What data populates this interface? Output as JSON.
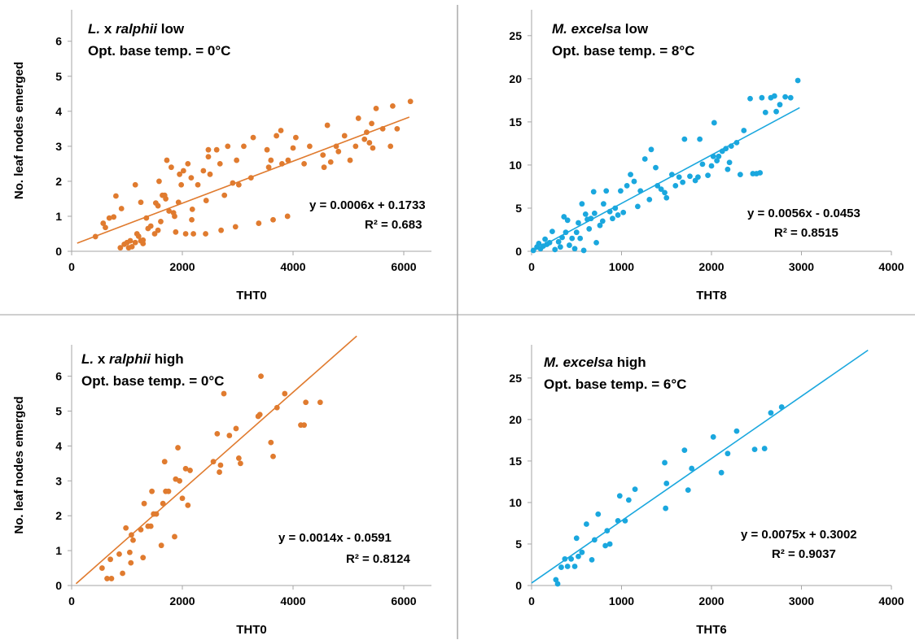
{
  "colors": {
    "orange": "#e07b2f",
    "blue": "#1aa7de",
    "axis": "#a6a6a6",
    "divider": "#7f7f7f"
  },
  "chart_data": [
    {
      "type": "scatter",
      "panel": "top-left",
      "title_parts": [
        {
          "text": "L.",
          "italic": true
        },
        {
          "text": " x ",
          "italic": false
        },
        {
          "text": "ralphii",
          "italic": true
        },
        {
          "text": " low",
          "italic": false
        }
      ],
      "subtitle": "Opt. base temp. = 0°C",
      "xlabel": "THT0",
      "ylabel": "No. leaf nodes emerged",
      "xlim": [
        0,
        6500
      ],
      "ylim": [
        0,
        6.9
      ],
      "xticks": [
        0,
        2000,
        4000,
        6000
      ],
      "yticks": [
        0,
        1,
        2,
        3,
        4,
        5,
        6
      ],
      "color": "orange",
      "equation": "y = 0.0006x + 0.1733",
      "r2": "R² = 0.683",
      "trendline": {
        "slope": 0.0006,
        "intercept": 0.1733,
        "xrange": [
          100,
          6100
        ]
      },
      "points": [
        [
          430,
          0.42
        ],
        [
          570,
          0.8
        ],
        [
          610,
          0.68
        ],
        [
          680,
          0.95
        ],
        [
          760,
          0.98
        ],
        [
          800,
          1.58
        ],
        [
          880,
          0.1
        ],
        [
          900,
          1.22
        ],
        [
          950,
          0.2
        ],
        [
          1000,
          0.25
        ],
        [
          1030,
          0.1
        ],
        [
          1060,
          0.3
        ],
        [
          1090,
          0.13
        ],
        [
          1150,
          1.9
        ],
        [
          1150,
          0.25
        ],
        [
          1180,
          0.5
        ],
        [
          1210,
          0.43
        ],
        [
          1250,
          1.4
        ],
        [
          1250,
          0.3
        ],
        [
          1290,
          0.22
        ],
        [
          1290,
          0.32
        ],
        [
          1350,
          0.95
        ],
        [
          1380,
          0.65
        ],
        [
          1430,
          0.72
        ],
        [
          1500,
          0.5
        ],
        [
          1520,
          1.38
        ],
        [
          1560,
          0.6
        ],
        [
          1560,
          1.3
        ],
        [
          1580,
          2.0
        ],
        [
          1610,
          0.85
        ],
        [
          1640,
          1.6
        ],
        [
          1680,
          1.6
        ],
        [
          1700,
          1.5
        ],
        [
          1720,
          2.6
        ],
        [
          1760,
          1.15
        ],
        [
          1800,
          2.4
        ],
        [
          1840,
          1.1
        ],
        [
          1860,
          1.0
        ],
        [
          1880,
          0.55
        ],
        [
          1930,
          1.4
        ],
        [
          1950,
          2.2
        ],
        [
          1980,
          1.9
        ],
        [
          2020,
          2.3
        ],
        [
          2060,
          0.5
        ],
        [
          2100,
          2.5
        ],
        [
          2160,
          2.1
        ],
        [
          2170,
          0.9
        ],
        [
          2180,
          1.2
        ],
        [
          2200,
          0.5
        ],
        [
          2280,
          1.9
        ],
        [
          2380,
          2.3
        ],
        [
          2420,
          0.5
        ],
        [
          2430,
          1.45
        ],
        [
          2470,
          2.7
        ],
        [
          2470,
          2.9
        ],
        [
          2500,
          2.2
        ],
        [
          2620,
          2.9
        ],
        [
          2680,
          2.5
        ],
        [
          2700,
          0.6
        ],
        [
          2760,
          1.6
        ],
        [
          2820,
          3.0
        ],
        [
          2910,
          1.95
        ],
        [
          2960,
          0.7
        ],
        [
          2980,
          2.6
        ],
        [
          3020,
          1.9
        ],
        [
          3110,
          3.0
        ],
        [
          3240,
          2.1
        ],
        [
          3280,
          3.25
        ],
        [
          3380,
          0.8
        ],
        [
          3530,
          2.9
        ],
        [
          3560,
          2.4
        ],
        [
          3600,
          2.6
        ],
        [
          3640,
          0.9
        ],
        [
          3700,
          3.3
        ],
        [
          3780,
          3.45
        ],
        [
          3800,
          2.5
        ],
        [
          3900,
          1.0
        ],
        [
          3910,
          2.6
        ],
        [
          4000,
          2.95
        ],
        [
          4050,
          3.25
        ],
        [
          4200,
          2.5
        ],
        [
          4300,
          3.0
        ],
        [
          4540,
          2.75
        ],
        [
          4560,
          2.4
        ],
        [
          4620,
          3.6
        ],
        [
          4680,
          2.55
        ],
        [
          4780,
          3.0
        ],
        [
          4820,
          2.85
        ],
        [
          4930,
          3.3
        ],
        [
          5030,
          2.6
        ],
        [
          5130,
          3.0
        ],
        [
          5180,
          3.8
        ],
        [
          5290,
          3.2
        ],
        [
          5330,
          3.4
        ],
        [
          5380,
          3.1
        ],
        [
          5420,
          3.65
        ],
        [
          5440,
          2.95
        ],
        [
          5500,
          4.08
        ],
        [
          5620,
          3.5
        ],
        [
          5760,
          3.0
        ],
        [
          5800,
          4.15
        ],
        [
          5880,
          3.5
        ],
        [
          6120,
          4.28
        ]
      ]
    },
    {
      "type": "scatter",
      "panel": "top-right",
      "title_parts": [
        {
          "text": "M. excelsa",
          "italic": true
        },
        {
          "text": " low",
          "italic": false
        }
      ],
      "subtitle": "Opt. base temp. = 8°C",
      "xlabel": "THT8",
      "ylabel": "",
      "xlim": [
        0,
        4000
      ],
      "ylim": [
        0,
        28
      ],
      "xticks": [
        0,
        1000,
        2000,
        3000,
        4000
      ],
      "yticks": [
        0,
        5,
        10,
        15,
        20,
        25
      ],
      "color": "blue",
      "equation": "y = 0.0056x - 0.0453",
      "r2": "R² = 0.8515",
      "trendline": {
        "slope": 0.0056,
        "intercept": -0.0453,
        "xrange": [
          0,
          2980
        ]
      },
      "points": [
        [
          20,
          0.1
        ],
        [
          60,
          0.5
        ],
        [
          80,
          0.9
        ],
        [
          100,
          0.3
        ],
        [
          130,
          0.6
        ],
        [
          150,
          1.4
        ],
        [
          170,
          0.8
        ],
        [
          200,
          1.0
        ],
        [
          230,
          2.3
        ],
        [
          260,
          0.2
        ],
        [
          300,
          1.1
        ],
        [
          320,
          0.5
        ],
        [
          340,
          1.6
        ],
        [
          360,
          4.0
        ],
        [
          380,
          2.2
        ],
        [
          400,
          3.6
        ],
        [
          420,
          0.7
        ],
        [
          450,
          1.5
        ],
        [
          480,
          0.3
        ],
        [
          500,
          2.2
        ],
        [
          520,
          3.3
        ],
        [
          540,
          1.5
        ],
        [
          560,
          5.5
        ],
        [
          580,
          0.1
        ],
        [
          600,
          4.3
        ],
        [
          620,
          3.7
        ],
        [
          640,
          2.6
        ],
        [
          660,
          3.8
        ],
        [
          690,
          6.9
        ],
        [
          700,
          4.4
        ],
        [
          720,
          1.0
        ],
        [
          760,
          3.0
        ],
        [
          790,
          3.5
        ],
        [
          800,
          5.5
        ],
        [
          830,
          7.0
        ],
        [
          870,
          4.6
        ],
        [
          900,
          3.8
        ],
        [
          930,
          5.0
        ],
        [
          960,
          4.2
        ],
        [
          990,
          7.0
        ],
        [
          1020,
          4.5
        ],
        [
          1060,
          7.6
        ],
        [
          1100,
          8.9
        ],
        [
          1140,
          8.1
        ],
        [
          1180,
          5.2
        ],
        [
          1210,
          7.0
        ],
        [
          1260,
          10.7
        ],
        [
          1310,
          6.0
        ],
        [
          1330,
          11.8
        ],
        [
          1380,
          9.7
        ],
        [
          1400,
          7.6
        ],
        [
          1440,
          7.2
        ],
        [
          1480,
          6.8
        ],
        [
          1500,
          6.2
        ],
        [
          1560,
          8.9
        ],
        [
          1600,
          7.6
        ],
        [
          1640,
          8.6
        ],
        [
          1680,
          8.0
        ],
        [
          1700,
          13.0
        ],
        [
          1760,
          8.7
        ],
        [
          1820,
          8.2
        ],
        [
          1850,
          8.6
        ],
        [
          1870,
          13.0
        ],
        [
          1900,
          10.1
        ],
        [
          1960,
          8.8
        ],
        [
          2000,
          9.9
        ],
        [
          2020,
          11.0
        ],
        [
          2030,
          14.9
        ],
        [
          2060,
          10.5
        ],
        [
          2080,
          11.0
        ],
        [
          2120,
          11.6
        ],
        [
          2160,
          11.9
        ],
        [
          2180,
          9.5
        ],
        [
          2200,
          10.3
        ],
        [
          2220,
          12.2
        ],
        [
          2280,
          12.6
        ],
        [
          2320,
          8.9
        ],
        [
          2360,
          14.0
        ],
        [
          2430,
          17.7
        ],
        [
          2460,
          9.0
        ],
        [
          2500,
          9.0
        ],
        [
          2540,
          9.1
        ],
        [
          2560,
          17.8
        ],
        [
          2600,
          16.1
        ],
        [
          2660,
          17.8
        ],
        [
          2700,
          18.0
        ],
        [
          2720,
          16.2
        ],
        [
          2760,
          17.0
        ],
        [
          2820,
          17.9
        ],
        [
          2880,
          17.8
        ],
        [
          2960,
          19.8
        ]
      ]
    },
    {
      "type": "scatter",
      "panel": "bottom-left",
      "title_parts": [
        {
          "text": "L.",
          "italic": true
        },
        {
          "text": " x ",
          "italic": false
        },
        {
          "text": "ralphii",
          "italic": true
        },
        {
          "text": " high",
          "italic": false
        }
      ],
      "subtitle": "Opt. base temp. = 0°C",
      "xlabel": "THT0",
      "ylabel": "No. leaf nodes emerged",
      "xlim": [
        0,
        6500
      ],
      "ylim": [
        0,
        6.9
      ],
      "xticks": [
        0,
        2000,
        4000,
        6000
      ],
      "yticks": [
        0,
        1,
        2,
        3,
        4,
        5,
        6
      ],
      "color": "orange",
      "equation": "y = 0.0014x - 0.0591",
      "r2": "R² = 0.8124",
      "trendline": {
        "slope": 0.0014,
        "intercept": -0.0591,
        "xrange": [
          80,
          5150
        ]
      },
      "points": [
        [
          550,
          0.5
        ],
        [
          640,
          0.2
        ],
        [
          700,
          0.75
        ],
        [
          720,
          0.2
        ],
        [
          860,
          0.9
        ],
        [
          920,
          0.35
        ],
        [
          980,
          1.65
        ],
        [
          1050,
          0.95
        ],
        [
          1070,
          0.65
        ],
        [
          1080,
          1.45
        ],
        [
          1110,
          1.3
        ],
        [
          1250,
          1.6
        ],
        [
          1290,
          0.8
        ],
        [
          1310,
          2.35
        ],
        [
          1380,
          1.7
        ],
        [
          1430,
          1.7
        ],
        [
          1450,
          2.7
        ],
        [
          1480,
          2.05
        ],
        [
          1530,
          2.05
        ],
        [
          1620,
          1.15
        ],
        [
          1650,
          2.35
        ],
        [
          1680,
          3.55
        ],
        [
          1700,
          2.7
        ],
        [
          1750,
          2.7
        ],
        [
          1860,
          1.4
        ],
        [
          1880,
          3.05
        ],
        [
          1920,
          3.95
        ],
        [
          1950,
          3.0
        ],
        [
          2000,
          2.5
        ],
        [
          2060,
          3.35
        ],
        [
          2100,
          2.3
        ],
        [
          2140,
          3.3
        ],
        [
          2560,
          3.55
        ],
        [
          2630,
          4.35
        ],
        [
          2670,
          3.25
        ],
        [
          2690,
          3.45
        ],
        [
          2750,
          5.5
        ],
        [
          2850,
          4.3
        ],
        [
          2970,
          4.5
        ],
        [
          3020,
          3.65
        ],
        [
          3050,
          3.5
        ],
        [
          3370,
          4.85
        ],
        [
          3400,
          4.9
        ],
        [
          3420,
          6.0
        ],
        [
          3600,
          4.1
        ],
        [
          3640,
          3.7
        ],
        [
          3710,
          5.1
        ],
        [
          3850,
          5.5
        ],
        [
          4140,
          4.6
        ],
        [
          4200,
          4.6
        ],
        [
          4230,
          5.25
        ],
        [
          4490,
          5.25
        ]
      ]
    },
    {
      "type": "scatter",
      "panel": "bottom-right",
      "title_parts": [
        {
          "text": "M. excelsa",
          "italic": true
        },
        {
          "text": " high",
          "italic": false
        }
      ],
      "subtitle": "Opt. base temp. = 6°C",
      "xlabel": "THT6",
      "ylabel": "",
      "xlim": [
        0,
        4000
      ],
      "ylim": [
        0,
        29
      ],
      "xticks": [
        0,
        1000,
        2000,
        3000,
        4000
      ],
      "yticks": [
        0,
        5,
        10,
        15,
        20,
        25
      ],
      "color": "blue",
      "equation": "y = 0.0075x + 0.3002",
      "r2": "R² = 0.9037",
      "trendline": {
        "slope": 0.0075,
        "intercept": 0.3002,
        "xrange": [
          0,
          3740
        ]
      },
      "points": [
        [
          270,
          0.7
        ],
        [
          290,
          0.2
        ],
        [
          330,
          2.2
        ],
        [
          370,
          3.2
        ],
        [
          400,
          2.3
        ],
        [
          440,
          3.2
        ],
        [
          480,
          2.3
        ],
        [
          500,
          5.7
        ],
        [
          520,
          3.5
        ],
        [
          560,
          4.0
        ],
        [
          610,
          7.4
        ],
        [
          670,
          3.1
        ],
        [
          700,
          5.5
        ],
        [
          740,
          8.6
        ],
        [
          820,
          4.8
        ],
        [
          840,
          6.6
        ],
        [
          870,
          5.0
        ],
        [
          960,
          7.8
        ],
        [
          980,
          10.8
        ],
        [
          1040,
          7.8
        ],
        [
          1080,
          10.3
        ],
        [
          1150,
          11.6
        ],
        [
          1480,
          14.8
        ],
        [
          1500,
          12.3
        ],
        [
          1490,
          9.3
        ],
        [
          1700,
          16.3
        ],
        [
          1740,
          11.5
        ],
        [
          1780,
          14.1
        ],
        [
          2020,
          17.9
        ],
        [
          2110,
          13.6
        ],
        [
          2180,
          15.9
        ],
        [
          2280,
          18.6
        ],
        [
          2480,
          16.4
        ],
        [
          2590,
          16.5
        ],
        [
          2660,
          20.8
        ],
        [
          2780,
          21.5
        ]
      ]
    }
  ]
}
